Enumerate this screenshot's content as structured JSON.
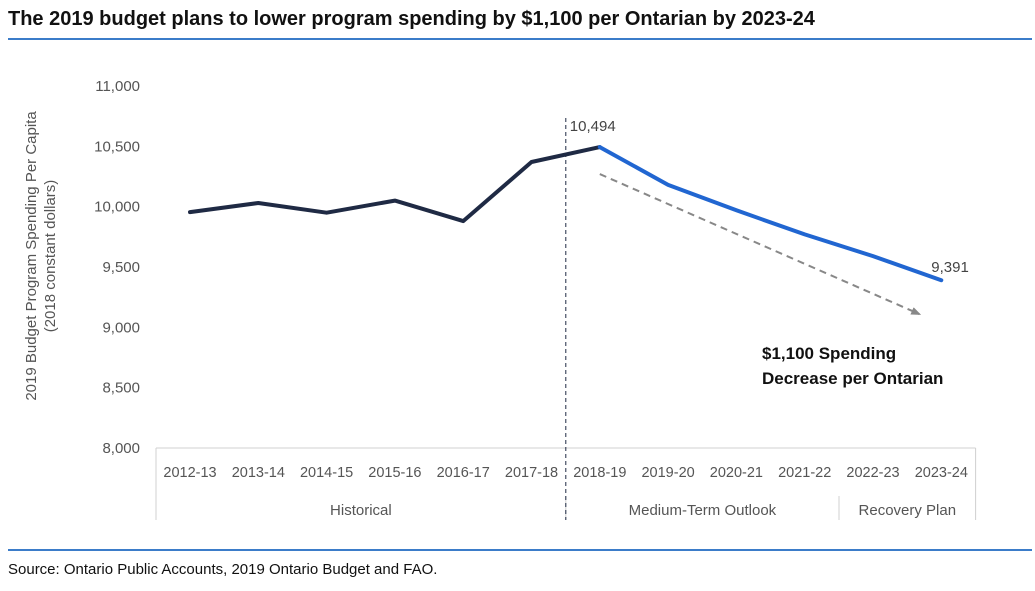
{
  "title": "The 2019 budget plans to lower program spending by $1,100 per Ontarian by 2023-24",
  "source": "Source: Ontario Public Accounts, 2019 Ontario Budget and FAO.",
  "chart_data": {
    "type": "line",
    "title": "The 2019 budget plans to lower program spending by $1,100 per Ontarian by 2023-24",
    "ylabel": "2019 Budget Program Spending Per Capita",
    "ylabel_sub": "(2018 constant dollars)",
    "ylim": [
      8000,
      11000
    ],
    "yticks": [
      8000,
      8500,
      9000,
      9500,
      10000,
      10500,
      11000
    ],
    "ytick_labels": [
      "8,000",
      "8,500",
      "9,000",
      "9,500",
      "10,000",
      "10,500",
      "11,000"
    ],
    "grid": false,
    "categories": [
      "2012-13",
      "2013-14",
      "2014-15",
      "2015-16",
      "2016-17",
      "2017-18",
      "2018-19",
      "2019-20",
      "2020-21",
      "2021-22",
      "2022-23",
      "2023-24"
    ],
    "groups": [
      {
        "label": "Historical",
        "start": 0,
        "end": 5
      },
      {
        "label": "Medium-Term Outlook",
        "start": 6,
        "end": 9
      },
      {
        "label": "Recovery Plan",
        "start": 10,
        "end": 11
      }
    ],
    "series": [
      {
        "values": [
          9955,
          10030,
          9950,
          10050,
          9880,
          10370,
          10494,
          null,
          null,
          null,
          null,
          null
        ],
        "color": "#1f2a44"
      },
      {
        "values": [
          null,
          null,
          null,
          null,
          null,
          null,
          10494,
          10180,
          9970,
          9770,
          9590,
          9391
        ],
        "color": "#2166d1"
      }
    ],
    "data_labels": [
      {
        "index": 6,
        "text": "10,494"
      },
      {
        "index": 11,
        "text": "9,391"
      }
    ],
    "annotation": {
      "line1": "$1,100 Spending",
      "line2": "Decrease per Ontarian",
      "arrow_from": {
        "x": 6,
        "y": 10270
      },
      "arrow_to": {
        "x": 11,
        "y": 9110
      }
    }
  }
}
